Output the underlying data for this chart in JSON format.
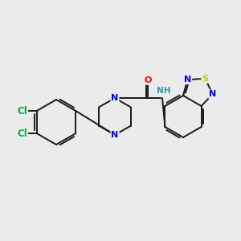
{
  "bg_color": "#ebebeb",
  "bond_color": "#1a1a1a",
  "colors": {
    "N": "#0000ff",
    "O": "#ff0000",
    "S": "#cccc00",
    "Cl": "#00aa44",
    "NH": "#3399aa",
    "C": "#1a1a1a"
  },
  "font_size": 8.0
}
